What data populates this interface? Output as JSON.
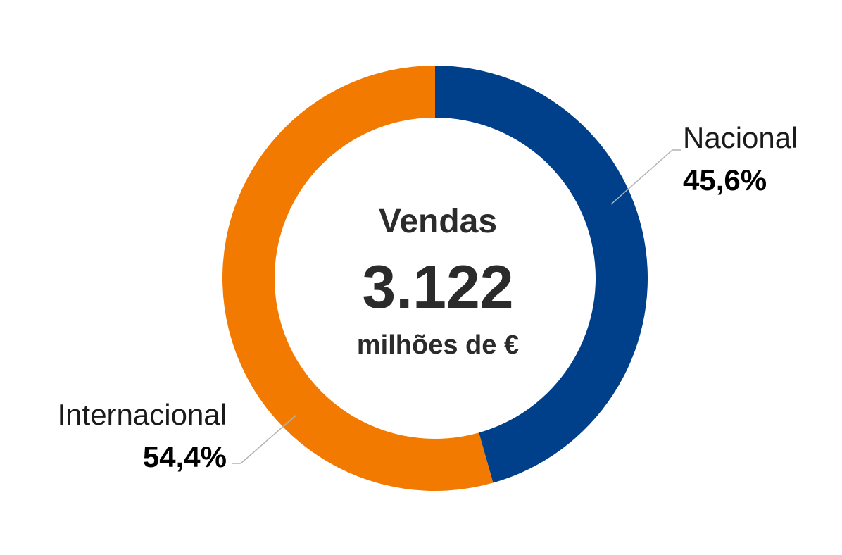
{
  "chart_data": {
    "type": "pie",
    "variant": "donut",
    "center": {
      "title": "Vendas",
      "value": "3.122",
      "unit": "milhões de €"
    },
    "slices": [
      {
        "name": "Nacional",
        "value": 45.6,
        "label": "45,6%",
        "color": "#003f8a"
      },
      {
        "name": "Internacional",
        "value": 54.4,
        "label": "54,4%",
        "color": "#f27a00"
      }
    ],
    "legend": "none"
  }
}
